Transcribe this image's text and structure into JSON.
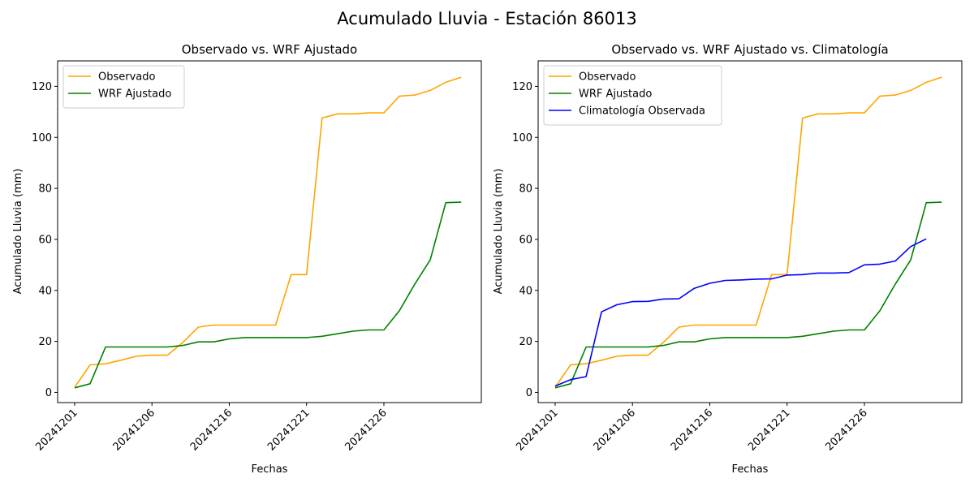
{
  "figure": {
    "suptitle": "Acumulado Lluvia - Estación 86013"
  },
  "colors": {
    "observado": "#ffa500",
    "wrf": "#008000",
    "climatologia": "#0000ff"
  },
  "chart_data": [
    {
      "type": "line",
      "title": "Observado vs. WRF Ajustado",
      "xlabel": "Fechas",
      "ylabel": "Acumulado Lluvia (mm)",
      "ylim": [
        -4,
        130
      ],
      "yticks": [
        "0",
        "20",
        "40",
        "60",
        "80",
        "100",
        "120"
      ],
      "xticks": [
        "20241201",
        "20241206",
        "20241216",
        "20241221",
        "20241226"
      ],
      "legend": "top-left",
      "series": [
        {
          "name": "Observado",
          "color": "#ffa500",
          "values": [
            2.0,
            10.8,
            11.2,
            12.6,
            14.2,
            14.6,
            14.6,
            19.6,
            25.6,
            26.4,
            26.4,
            26.4,
            26.4,
            26.4,
            46.2,
            46.2,
            107.6,
            109.2,
            109.2,
            109.6,
            109.6,
            116.2,
            116.6,
            118.4,
            121.6,
            123.6
          ]
        },
        {
          "name": "WRF Ajustado",
          "color": "#008000",
          "values": [
            1.8,
            3.4,
            17.8,
            17.8,
            17.8,
            17.8,
            17.8,
            18.4,
            19.8,
            19.8,
            21.0,
            21.5,
            21.5,
            21.5,
            21.5,
            21.5,
            22.0,
            23.0,
            24.0,
            24.5,
            24.5,
            32.0,
            42.5,
            52.0,
            74.4,
            74.6
          ]
        }
      ]
    },
    {
      "type": "line",
      "title": "Observado vs. WRF Ajustado vs. Climatología",
      "xlabel": "Fechas",
      "ylabel": "Acumulado Lluvia (mm)",
      "ylim": [
        -4,
        130
      ],
      "yticks": [
        "0",
        "20",
        "40",
        "60",
        "80",
        "100",
        "120"
      ],
      "xticks": [
        "20241201",
        "20241206",
        "20241216",
        "20241221",
        "20241226"
      ],
      "legend": "top-left",
      "series": [
        {
          "name": "Observado",
          "color": "#ffa500",
          "values": [
            2.0,
            10.8,
            11.2,
            12.6,
            14.2,
            14.6,
            14.6,
            19.6,
            25.6,
            26.4,
            26.4,
            26.4,
            26.4,
            26.4,
            46.2,
            46.2,
            107.6,
            109.2,
            109.2,
            109.6,
            109.6,
            116.2,
            116.6,
            118.4,
            121.6,
            123.6
          ]
        },
        {
          "name": "WRF Ajustado",
          "color": "#008000",
          "values": [
            1.8,
            3.4,
            17.8,
            17.8,
            17.8,
            17.8,
            17.8,
            18.4,
            19.8,
            19.8,
            21.0,
            21.5,
            21.5,
            21.5,
            21.5,
            21.5,
            22.0,
            23.0,
            24.0,
            24.5,
            24.5,
            32.0,
            42.5,
            52.0,
            74.4,
            74.6
          ]
        },
        {
          "name": "Climatología Observada",
          "color": "#0000ff",
          "values": [
            2.5,
            5.0,
            6.2,
            31.6,
            34.4,
            35.6,
            35.7,
            36.6,
            36.7,
            40.8,
            42.8,
            43.9,
            44.1,
            44.4,
            44.5,
            46.0,
            46.2,
            46.8,
            46.8,
            47.0,
            50.0,
            50.3,
            51.5,
            57.2,
            60.2
          ]
        }
      ]
    }
  ]
}
